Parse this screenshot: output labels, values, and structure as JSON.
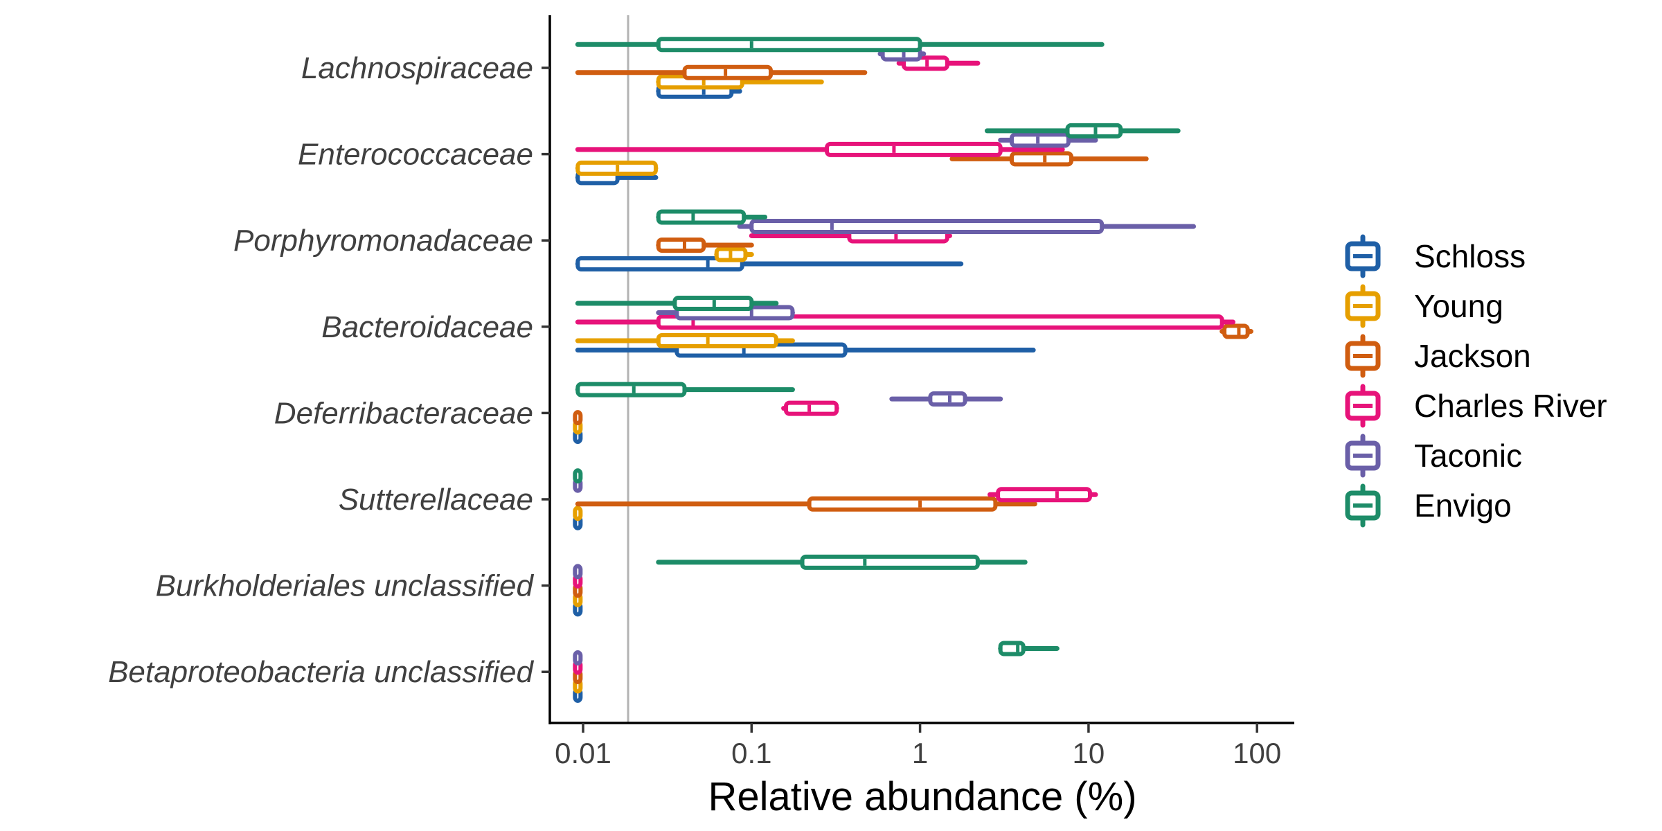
{
  "chart_data": {
    "type": "boxplot",
    "orientation": "horizontal",
    "title": "",
    "xlabel": "Relative abundance (%)",
    "ylabel": "",
    "x_scale": "log10",
    "xlim": [
      0.0065,
      150
    ],
    "x_ticks": [
      0.01,
      0.1,
      1,
      10,
      100
    ],
    "x_tick_labels": [
      "0.01",
      "0.1",
      "1",
      "10",
      "100"
    ],
    "reference_line": 0.0185,
    "grid": false,
    "legend_position": "right",
    "categories": [
      "Lachnospiraceae",
      "Enterococcaceae",
      "Porphyromonadaceae",
      "Bacteroidaceae",
      "Deferribacteraceae",
      "Sutterellaceae",
      "Burkholderiales unclassified",
      "Betaproteobacteria unclassified"
    ],
    "series": [
      {
        "name": "Schloss",
        "color": "#1f5fa6",
        "boxes": [
          {
            "min": 0.028,
            "q1": 0.028,
            "median": 0.052,
            "q3": 0.076,
            "max": 0.085
          },
          {
            "min": 0.0093,
            "q1": 0.0093,
            "median": 0.0093,
            "q3": 0.016,
            "max": 0.027
          },
          {
            "min": 0.0093,
            "q1": 0.0093,
            "median": 0.055,
            "q3": 0.088,
            "max": 1.75
          },
          {
            "min": 0.0093,
            "q1": 0.036,
            "median": 0.09,
            "q3": 0.36,
            "max": 4.7
          },
          {
            "min": 0.0093,
            "q1": 0.0093,
            "median": 0.0093,
            "q3": 0.0093,
            "max": 0.0093
          },
          {
            "min": 0.0093,
            "q1": 0.0093,
            "median": 0.0093,
            "q3": 0.0093,
            "max": 0.0093
          },
          {
            "min": 0.0093,
            "q1": 0.0093,
            "median": 0.0093,
            "q3": 0.0093,
            "max": 0.0093
          },
          {
            "min": 0.0093,
            "q1": 0.0093,
            "median": 0.0093,
            "q3": 0.0093,
            "max": 0.0093
          }
        ]
      },
      {
        "name": "Young",
        "color": "#e69f00",
        "boxes": [
          {
            "min": 0.028,
            "q1": 0.028,
            "median": 0.052,
            "q3": 0.088,
            "max": 0.26
          },
          {
            "min": 0.0093,
            "q1": 0.0093,
            "median": 0.016,
            "q3": 0.027,
            "max": 0.027
          },
          {
            "min": 0.062,
            "q1": 0.062,
            "median": 0.075,
            "q3": 0.092,
            "max": 0.1
          },
          {
            "min": 0.0093,
            "q1": 0.028,
            "median": 0.055,
            "q3": 0.14,
            "max": 0.175
          },
          {
            "min": 0.0093,
            "q1": 0.0093,
            "median": 0.0093,
            "q3": 0.0093,
            "max": 0.0093
          },
          {
            "min": 0.0093,
            "q1": 0.0093,
            "median": 0.0093,
            "q3": 0.0093,
            "max": 0.0093
          },
          {
            "min": 0.0093,
            "q1": 0.0093,
            "median": 0.0093,
            "q3": 0.0093,
            "max": 0.0093
          },
          {
            "min": 0.0093,
            "q1": 0.0093,
            "median": 0.0093,
            "q3": 0.0093,
            "max": 0.0093
          }
        ]
      },
      {
        "name": "Jackson",
        "color": "#d05d10",
        "boxes": [
          {
            "min": 0.0093,
            "q1": 0.04,
            "median": 0.07,
            "q3": 0.13,
            "max": 0.47
          },
          {
            "min": 1.55,
            "q1": 3.5,
            "median": 5.5,
            "q3": 7.9,
            "max": 22
          },
          {
            "min": 0.028,
            "q1": 0.028,
            "median": 0.04,
            "q3": 0.052,
            "max": 0.1
          },
          {
            "min": 62,
            "q1": 64,
            "median": 78,
            "q3": 88,
            "max": 92
          },
          {
            "min": 0.0093,
            "q1": 0.0093,
            "median": 0.0093,
            "q3": 0.0093,
            "max": 0.0093
          },
          {
            "min": 0.0093,
            "q1": 0.22,
            "median": 1.0,
            "q3": 2.8,
            "max": 4.8
          },
          {
            "min": 0.0093,
            "q1": 0.0093,
            "median": 0.0093,
            "q3": 0.0093,
            "max": 0.0093
          },
          {
            "min": 0.0093,
            "q1": 0.0093,
            "median": 0.0093,
            "q3": 0.0093,
            "max": 0.0093
          }
        ]
      },
      {
        "name": "Charles River",
        "color": "#e7137a",
        "boxes": [
          {
            "min": 0.75,
            "q1": 0.8,
            "median": 1.1,
            "q3": 1.45,
            "max": 2.2
          },
          {
            "min": 0.0093,
            "q1": 0.28,
            "median": 0.7,
            "q3": 3.0,
            "max": 7.0
          },
          {
            "min": 0.1,
            "q1": 0.38,
            "median": 0.72,
            "q3": 1.45,
            "max": 1.5
          },
          {
            "min": 0.0093,
            "q1": 0.028,
            "median": 0.045,
            "q3": 62,
            "max": 72
          },
          {
            "min": 0.155,
            "q1": 0.16,
            "median": 0.22,
            "q3": 0.32,
            "max": 0.32
          },
          {
            "min": 2.6,
            "q1": 2.9,
            "median": 6.5,
            "q3": 10.2,
            "max": 11
          },
          {
            "min": 0.0093,
            "q1": 0.0093,
            "median": 0.0093,
            "q3": 0.0093,
            "max": 0.0093
          },
          {
            "min": 0.0093,
            "q1": 0.0093,
            "median": 0.0093,
            "q3": 0.0093,
            "max": 0.0093
          }
        ]
      },
      {
        "name": "Taconic",
        "color": "#6a5fa8",
        "boxes": [
          {
            "min": 0.58,
            "q1": 0.6,
            "median": 0.8,
            "q3": 1.0,
            "max": 1.05
          },
          {
            "min": 3.0,
            "q1": 3.5,
            "median": 5.0,
            "q3": 7.6,
            "max": 11
          },
          {
            "min": 0.085,
            "q1": 0.1,
            "median": 0.3,
            "q3": 12,
            "max": 42
          },
          {
            "min": 0.028,
            "q1": 0.036,
            "median": 0.1,
            "q3": 0.175,
            "max": 0.175
          },
          {
            "min": 0.68,
            "q1": 1.15,
            "median": 1.5,
            "q3": 1.85,
            "max": 3.0
          },
          {
            "min": 0.0093,
            "q1": 0.0093,
            "median": 0.0093,
            "q3": 0.0093,
            "max": 0.0093
          },
          {
            "min": 0.0093,
            "q1": 0.0093,
            "median": 0.0093,
            "q3": 0.0093,
            "max": 0.0093
          },
          {
            "min": 0.0093,
            "q1": 0.0093,
            "median": 0.0093,
            "q3": 0.0093,
            "max": 0.0093
          }
        ]
      },
      {
        "name": "Envigo",
        "color": "#1d8c68",
        "boxes": [
          {
            "min": 0.0093,
            "q1": 0.028,
            "median": 0.1,
            "q3": 1.0,
            "max": 12
          },
          {
            "min": 2.5,
            "q1": 7.5,
            "median": 11,
            "q3": 15.5,
            "max": 34
          },
          {
            "min": 0.028,
            "q1": 0.028,
            "median": 0.045,
            "q3": 0.09,
            "max": 0.12
          },
          {
            "min": 0.0093,
            "q1": 0.035,
            "median": 0.06,
            "q3": 0.1,
            "max": 0.14
          },
          {
            "min": 0.0093,
            "q1": 0.0093,
            "median": 0.02,
            "q3": 0.04,
            "max": 0.175
          },
          {
            "min": 0.0093,
            "q1": 0.0093,
            "median": 0.0093,
            "q3": 0.0093,
            "max": 0.0093
          },
          {
            "min": 0.028,
            "q1": 0.2,
            "median": 0.47,
            "q3": 2.2,
            "max": 4.2
          },
          {
            "min": 3.0,
            "q1": 3.0,
            "median": 3.8,
            "q3": 4.1,
            "max": 6.5
          }
        ]
      }
    ]
  }
}
